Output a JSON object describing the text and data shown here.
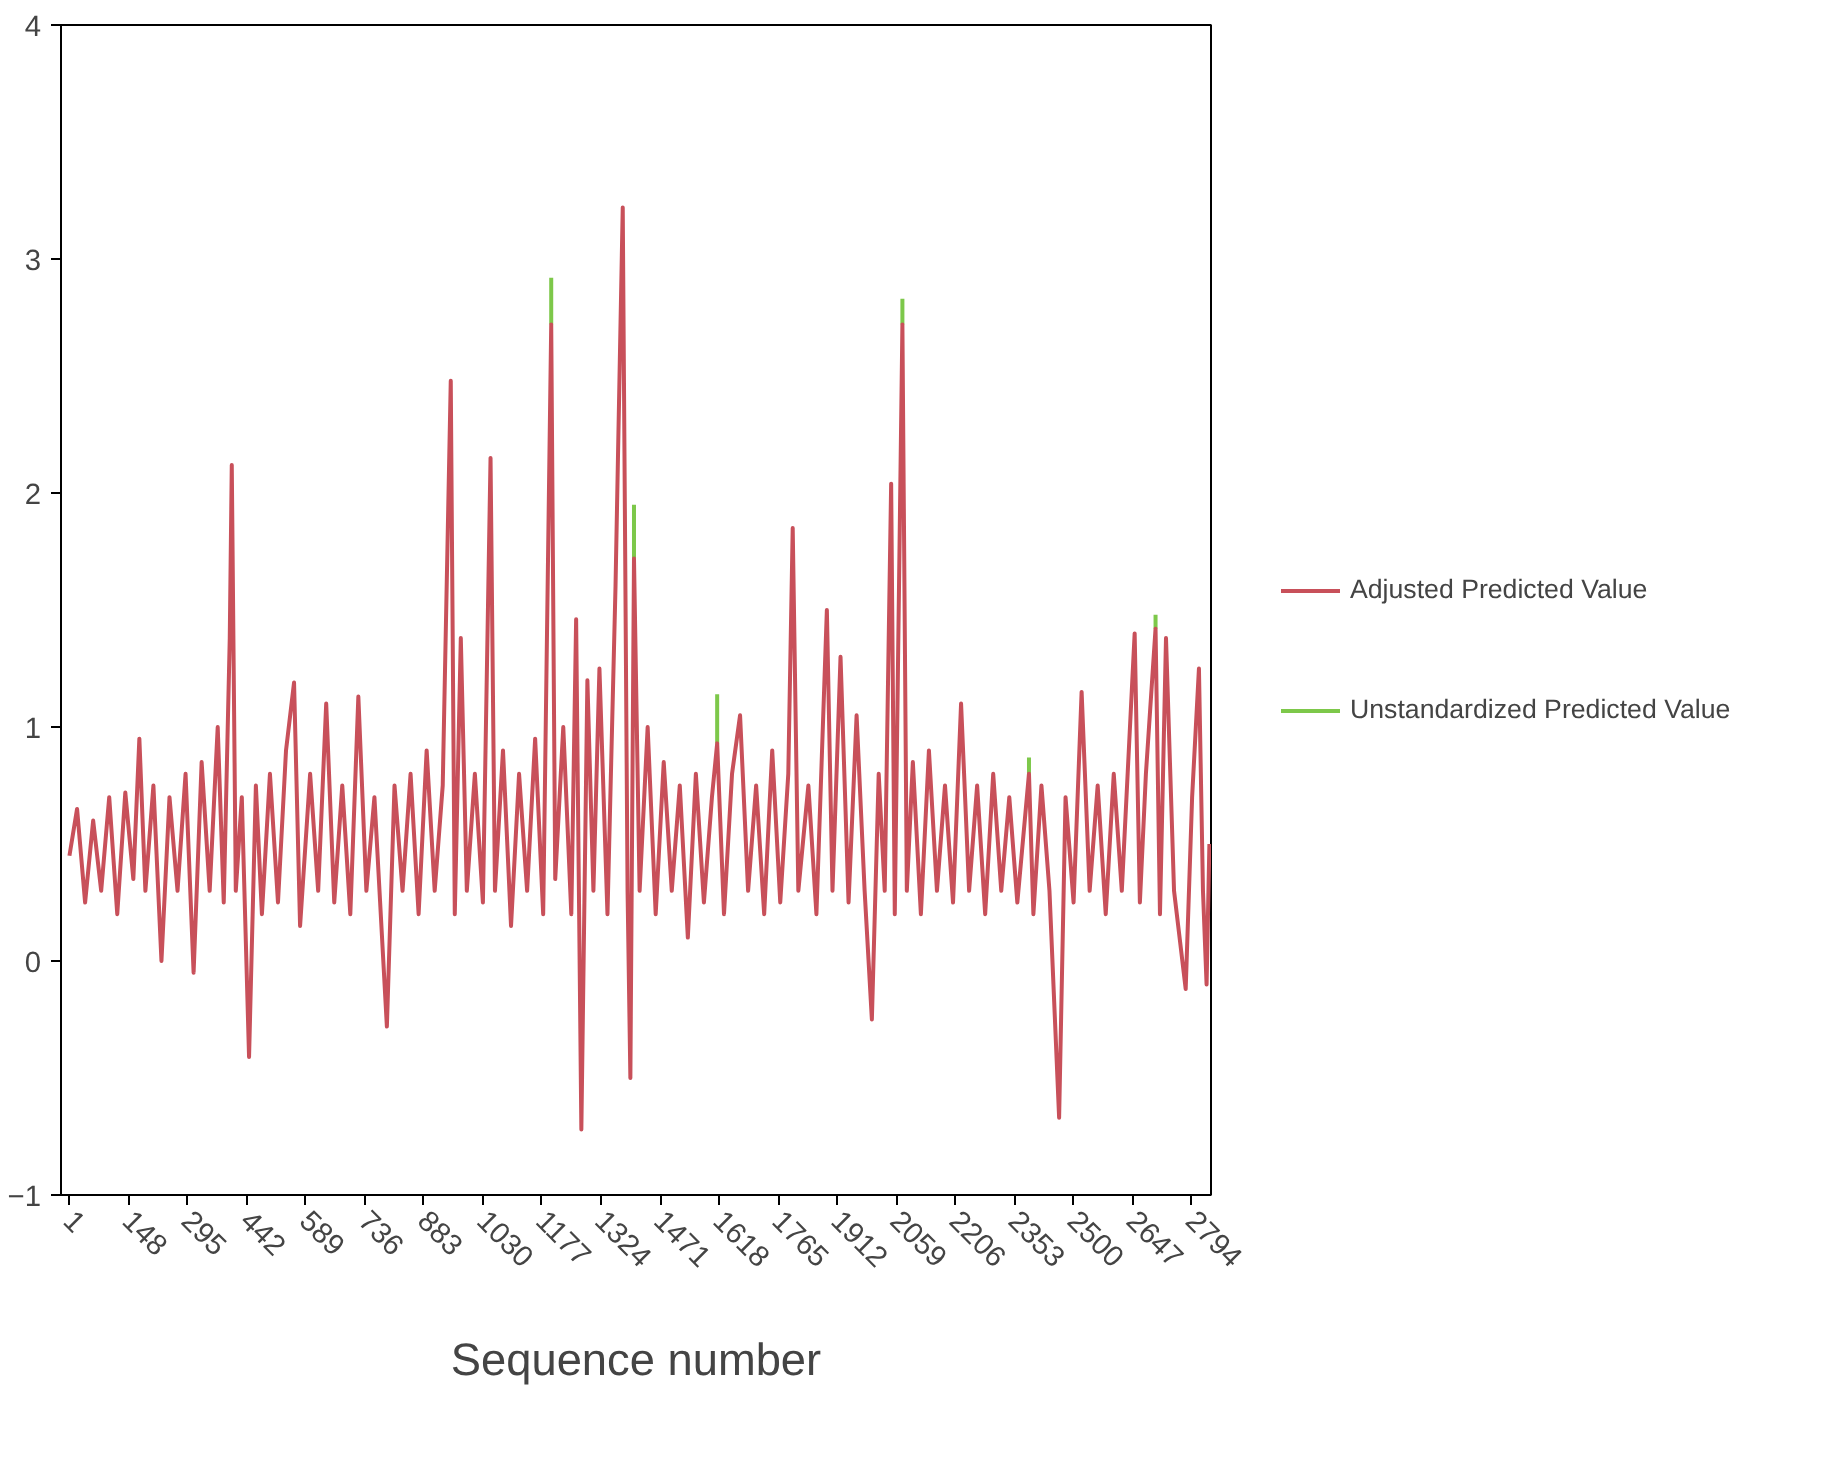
{
  "chart_data": {
    "type": "line",
    "xlabel": "Sequence number",
    "xlim": [
      -20,
      2842
    ],
    "ylim": [
      -1,
      4
    ],
    "xticks": [
      1,
      148,
      295,
      442,
      589,
      736,
      883,
      1030,
      1177,
      1324,
      1471,
      1618,
      1765,
      1912,
      2059,
      2206,
      2353,
      2500,
      2647,
      2794
    ],
    "yticks": [
      -1,
      0,
      1,
      2,
      3,
      4
    ],
    "grid": false,
    "legend": "right",
    "marker": "none",
    "line_style": "solid",
    "series": [
      {
        "name": "Unstandardized Predicted Value",
        "color": "#7dc84a",
        "x": [
          1200,
          1200,
          1201,
          1406,
          1406,
          1407,
          1613,
          1613,
          1614,
          2074,
          2074,
          2075,
          2389,
          2389,
          2390,
          2704,
          2704
        ],
        "values": [
          2.72,
          2.92,
          null,
          1.72,
          1.95,
          null,
          0.93,
          1.14,
          null,
          2.72,
          2.83,
          null,
          0.8,
          0.87,
          null,
          1.42,
          1.48
        ]
      },
      {
        "name": "Adjusted Predicted Value",
        "color": "#c8505a",
        "x": [
          1,
          20,
          40,
          60,
          80,
          100,
          120,
          140,
          160,
          175,
          190,
          210,
          230,
          250,
          270,
          290,
          310,
          330,
          350,
          370,
          385,
          400,
          405,
          415,
          430,
          448,
          465,
          480,
          500,
          520,
          540,
          560,
          575,
          600,
          620,
          640,
          660,
          680,
          700,
          720,
          740,
          760,
          791,
          810,
          830,
          850,
          870,
          890,
          910,
          930,
          950,
          960,
          975,
          990,
          1010,
          1030,
          1049,
          1060,
          1080,
          1100,
          1120,
          1140,
          1160,
          1180,
          1200,
          1210,
          1230,
          1250,
          1262,
          1275,
          1290,
          1305,
          1320,
          1340,
          1360,
          1378,
          1390,
          1397,
          1406,
          1420,
          1440,
          1460,
          1480,
          1500,
          1520,
          1540,
          1560,
          1580,
          1600,
          1613,
          1630,
          1650,
          1670,
          1690,
          1710,
          1730,
          1750,
          1770,
          1790,
          1801,
          1815,
          1840,
          1860,
          1886,
          1900,
          1920,
          1940,
          1960,
          1980,
          1998,
          2015,
          2030,
          2046,
          2055,
          2074,
          2085,
          2100,
          2120,
          2140,
          2160,
          2180,
          2200,
          2220,
          2240,
          2260,
          2280,
          2300,
          2320,
          2340,
          2360,
          2389,
          2400,
          2420,
          2440,
          2464,
          2480,
          2500,
          2520,
          2540,
          2560,
          2580,
          2600,
          2620,
          2652,
          2665,
          2680,
          2704,
          2715,
          2730,
          2750,
          2779,
          2795,
          2812,
          2822,
          2831,
          2838
        ],
        "values": [
          0.45,
          0.65,
          0.25,
          0.6,
          0.3,
          0.7,
          0.2,
          0.72,
          0.35,
          0.95,
          0.3,
          0.75,
          0.0,
          0.7,
          0.3,
          0.8,
          -0.05,
          0.85,
          0.3,
          1.0,
          0.25,
          1.38,
          2.12,
          0.3,
          0.7,
          -0.41,
          0.75,
          0.2,
          0.8,
          0.25,
          0.9,
          1.19,
          0.15,
          0.8,
          0.3,
          1.1,
          0.25,
          0.75,
          0.2,
          1.13,
          0.3,
          0.7,
          -0.28,
          0.75,
          0.3,
          0.8,
          0.2,
          0.9,
          0.3,
          0.75,
          2.48,
          0.2,
          1.38,
          0.3,
          0.8,
          0.25,
          2.15,
          0.3,
          0.9,
          0.15,
          0.8,
          0.3,
          0.95,
          0.2,
          2.72,
          0.35,
          1.0,
          0.2,
          1.46,
          -0.72,
          1.2,
          0.3,
          1.25,
          0.2,
          1.6,
          3.22,
          0.3,
          -0.5,
          1.72,
          0.3,
          1.0,
          0.2,
          0.85,
          0.3,
          0.75,
          0.1,
          0.8,
          0.25,
          0.7,
          0.93,
          0.2,
          0.8,
          1.05,
          0.3,
          0.75,
          0.2,
          0.9,
          0.25,
          0.8,
          1.85,
          0.3,
          0.75,
          0.2,
          1.5,
          0.3,
          1.3,
          0.25,
          1.05,
          0.3,
          -0.25,
          0.8,
          0.3,
          2.04,
          0.2,
          2.72,
          0.3,
          0.85,
          0.2,
          0.9,
          0.3,
          0.75,
          0.25,
          1.1,
          0.3,
          0.75,
          0.2,
          0.8,
          0.3,
          0.7,
          0.25,
          0.8,
          0.2,
          0.75,
          0.3,
          -0.67,
          0.7,
          0.25,
          1.15,
          0.3,
          0.75,
          0.2,
          0.8,
          0.3,
          1.4,
          0.25,
          0.8,
          1.42,
          0.2,
          1.38,
          0.3,
          -0.12,
          0.7,
          1.25,
          0.3,
          -0.1,
          0.5
        ]
      }
    ]
  }
}
